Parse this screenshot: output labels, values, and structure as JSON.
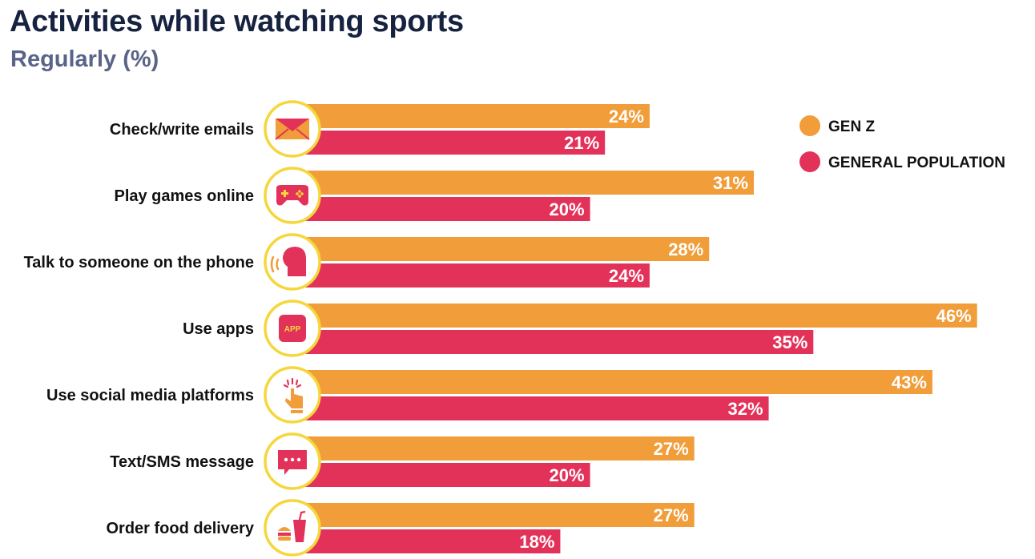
{
  "colors": {
    "gen_z": "#f09d3a",
    "general_population": "#e3325a",
    "icon_ring": "#f5d73c",
    "title": "#16223f",
    "subtitle": "#5a6488"
  },
  "legend": {
    "gen_z": "GEN Z",
    "general_population": "GENERAL POPULATION"
  },
  "icons": [
    "envelope-icon",
    "gamepad-icon",
    "speaking-head-icon",
    "app-icon",
    "tap-hand-icon",
    "chat-bubble-icon",
    "food-drink-icon"
  ],
  "icon_text": {
    "app": "APP"
  },
  "chart_data": {
    "type": "bar",
    "orientation": "horizontal",
    "title": "Activities while watching sports",
    "subtitle": "Regularly (%)",
    "categories": [
      "Check/write emails",
      "Play games online",
      "Talk to someone on the phone",
      "Use apps",
      "Use social media platforms",
      "Text/SMS message",
      "Order food delivery"
    ],
    "series": [
      {
        "name": "GEN Z",
        "values": [
          24,
          31,
          28,
          46,
          43,
          27,
          27
        ]
      },
      {
        "name": "GENERAL POPULATION",
        "values": [
          21,
          20,
          24,
          35,
          32,
          20,
          18
        ]
      }
    ],
    "value_suffix": "%",
    "grid": false,
    "legend_position": "top-right"
  }
}
